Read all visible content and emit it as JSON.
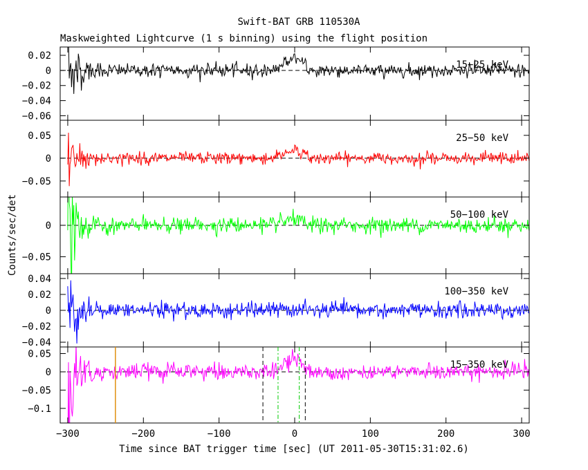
{
  "chart_data": {
    "type": "line",
    "title": "Swift-BAT GRB 110530A",
    "subtitle": "Maskweighted Lightcurve (1 s binning) using the flight position",
    "xlabel": "Time since BAT trigger time [sec] (UT 2011-05-30T15:31:02.6)",
    "ylabel": "Counts/sec/det",
    "xlim": [
      -310,
      310
    ],
    "xticks": [
      -300,
      -200,
      -100,
      0,
      100,
      200,
      300
    ],
    "xtick_labels": [
      "−300",
      "−200",
      "−100",
      "0",
      "100",
      "200",
      "300"
    ],
    "grid": false,
    "panels": [
      {
        "name": "15-25 keV",
        "label": "15−25 keV",
        "color": "#000000",
        "ylim": [
          -0.066,
          0.031
        ],
        "yticks": [
          0.02,
          0,
          -0.02,
          -0.04,
          -0.06
        ],
        "ytick_labels": [
          "0.02",
          "0",
          "−0.02",
          "−0.04",
          "−0.06"
        ],
        "noise_sigma": 0.0045,
        "burst_peak": 0.018,
        "early_amplitude": 0.035
      },
      {
        "name": "25-50 keV",
        "label": "25−50 keV",
        "color": "#ff0000",
        "ylim": [
          -0.085,
          0.083
        ],
        "yticks": [
          0.05,
          0,
          -0.05
        ],
        "ytick_labels": [
          "0.05",
          "0",
          "−0.05"
        ],
        "noise_sigma": 0.0065,
        "burst_peak": 0.02,
        "early_amplitude": 0.07
      },
      {
        "name": "50-100 keV",
        "label": "50−100 keV",
        "color": "#00ff00",
        "ylim": [
          -0.077,
          0.045
        ],
        "yticks": [
          0,
          -0.05
        ],
        "ytick_labels": [
          "0",
          "−0.05"
        ],
        "noise_sigma": 0.006,
        "burst_peak": 0.01,
        "early_amplitude": 0.065
      },
      {
        "name": "100-350 keV",
        "label": "100−350 keV",
        "color": "#0000ff",
        "ylim": [
          -0.046,
          0.046
        ],
        "yticks": [
          0.04,
          0.02,
          0,
          -0.02,
          -0.04
        ],
        "ytick_labels": [
          "0.04",
          "0.02",
          "0",
          "−0.02",
          "−0.04"
        ],
        "noise_sigma": 0.005,
        "burst_peak": 0.002,
        "early_amplitude": 0.04
      },
      {
        "name": "15-350 keV",
        "label": "15−350 keV",
        "color": "#ff00ff",
        "ylim": [
          -0.14,
          0.068
        ],
        "yticks": [
          0.05,
          0,
          -0.05,
          -0.1
        ],
        "ytick_labels": [
          "0.05",
          "0",
          "−0.05",
          "−0.1"
        ],
        "noise_sigma": 0.011,
        "burst_peak": 0.04,
        "early_amplitude": 0.12
      }
    ],
    "annotations": {
      "baseline_y": 0,
      "burst_window_black": [
        -42,
        14
      ],
      "burst_window_green": [
        -22,
        6
      ],
      "orange_marker_x": -237
    },
    "colors": {
      "black_dashed": "#000000",
      "green_dashdot": "#00cc00",
      "orange_marker": "#e09010"
    }
  }
}
